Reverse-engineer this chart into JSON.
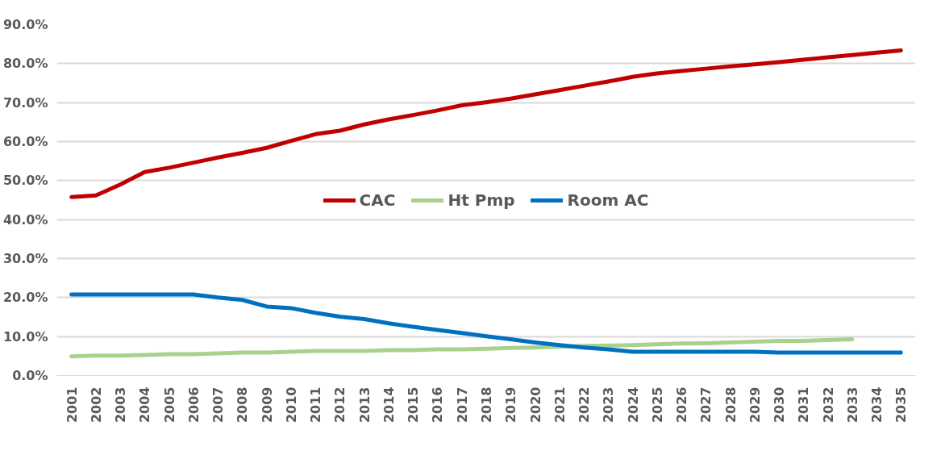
{
  "chart_data": {
    "type": "line",
    "categories": [
      "2001",
      "2002",
      "2003",
      "2004",
      "2005",
      "2006",
      "2007",
      "2008",
      "2009",
      "2010",
      "2011",
      "2012",
      "2013",
      "2014",
      "2015",
      "2016",
      "2017",
      "2018",
      "2019",
      "2020",
      "2021",
      "2022",
      "2023",
      "2024",
      "2025",
      "2026",
      "2027",
      "2028",
      "2029",
      "2030",
      "2031",
      "2032",
      "2033",
      "2034",
      "2035"
    ],
    "series": [
      {
        "name": "CAC",
        "color": "#c00000",
        "values": [
          45.8,
          46.2,
          49.0,
          52.2,
          53.3,
          54.6,
          55.9,
          57.1,
          58.4,
          60.2,
          61.9,
          62.8,
          64.4,
          65.7,
          66.8,
          68.0,
          69.3,
          70.1,
          71.0,
          72.1,
          73.2,
          74.3,
          75.4,
          76.6,
          77.5,
          78.1,
          78.7,
          79.3,
          79.8,
          80.4,
          81.0,
          81.6,
          82.2,
          82.8,
          83.4
        ]
      },
      {
        "name": "Ht Pmp",
        "color": "#a9d18e",
        "values": [
          4.9,
          5.1,
          5.1,
          5.3,
          5.5,
          5.5,
          5.7,
          5.9,
          5.9,
          6.1,
          6.3,
          6.3,
          6.3,
          6.5,
          6.5,
          6.7,
          6.7,
          6.9,
          7.1,
          7.2,
          7.4,
          7.6,
          7.7,
          7.8,
          8.0,
          8.2,
          8.3,
          8.5,
          8.7,
          8.9,
          8.9,
          9.1,
          9.3,
          null,
          null
        ]
      },
      {
        "name": "Room AC",
        "color": "#0070c0",
        "values": [
          20.8,
          20.8,
          20.8,
          20.8,
          20.8,
          20.8,
          20.0,
          19.4,
          17.7,
          17.3,
          16.1,
          15.1,
          14.5,
          13.4,
          12.5,
          11.7,
          10.9,
          10.1,
          9.3,
          8.5,
          7.8,
          7.2,
          6.7,
          6.1,
          6.1,
          6.1,
          6.1,
          6.1,
          6.1,
          5.9,
          5.9,
          5.9,
          5.9,
          5.9,
          5.9
        ]
      }
    ],
    "ylim": [
      0,
      90
    ],
    "yticks": [
      {
        "value": 0,
        "label": "0.0%"
      },
      {
        "value": 10,
        "label": "10.0%"
      },
      {
        "value": 20,
        "label": "20.0%"
      },
      {
        "value": 30,
        "label": "30.0%"
      },
      {
        "value": 40,
        "label": "40.0%"
      },
      {
        "value": 50,
        "label": "50.0%"
      },
      {
        "value": 60,
        "label": "60.0%"
      },
      {
        "value": 70,
        "label": "70.0%"
      },
      {
        "value": 80,
        "label": "80.0%"
      },
      {
        "value": 90,
        "label": "90.0%"
      }
    ],
    "grid": "y",
    "legend": "center",
    "marker": "none",
    "line_style": "solid"
  }
}
